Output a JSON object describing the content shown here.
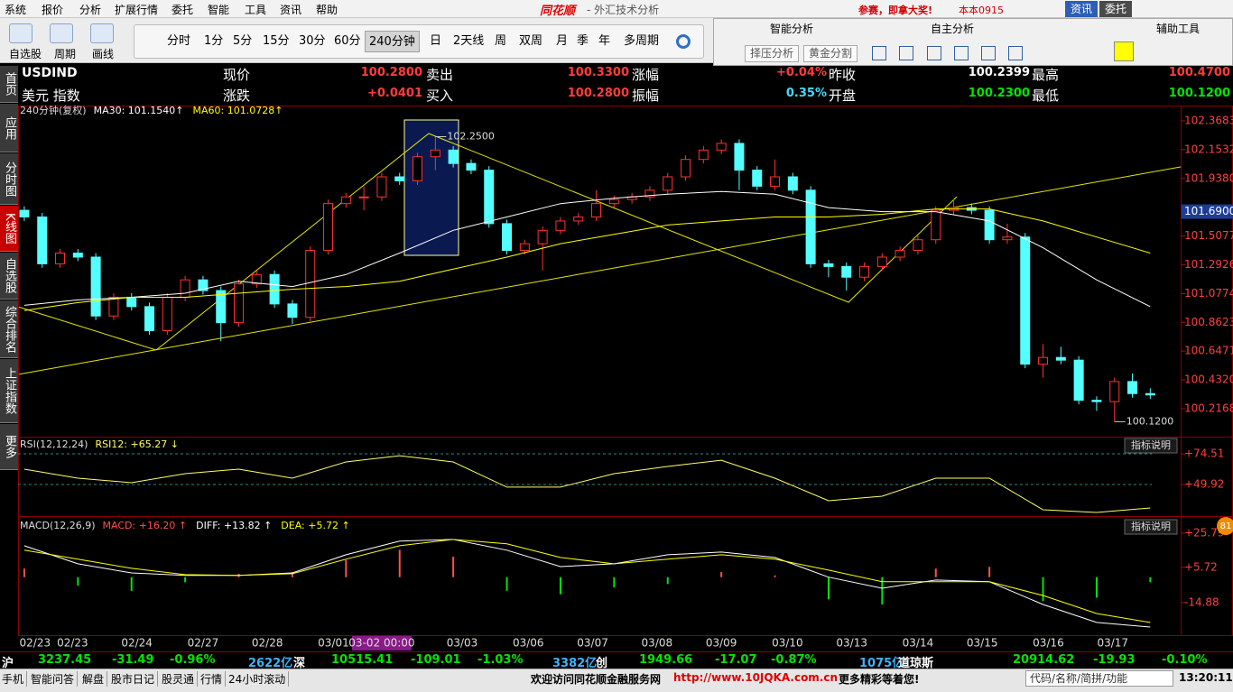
{
  "titlebar": {
    "menu": [
      "系统",
      "报价",
      "分析",
      "扩展行情",
      "委托",
      "智能",
      "工具",
      "资讯",
      "帮助"
    ],
    "logo": "同花顺",
    "title": "- 外汇技术分析",
    "promo": "参赛，即拿大奖!",
    "user": "本本0915",
    "buttons": [
      "资讯",
      "委托"
    ]
  },
  "toolbar": {
    "tools": [
      "自选股",
      "周期",
      "画线"
    ],
    "periods": [
      "分时",
      "1分",
      "5分",
      "15分",
      "30分",
      "60分",
      "240分钟",
      "日",
      "2天线",
      "周",
      "双周",
      "月",
      "季",
      "年",
      "多周期"
    ],
    "selected_period": 6
  },
  "analysis_panel": {
    "tabs": [
      "智能分析",
      "自主分析",
      "辅助工具"
    ],
    "buttons": [
      "择压分析",
      "黄金分割"
    ]
  },
  "quote": {
    "symbol": "USDIND",
    "name": "美元 指数",
    "fields": [
      {
        "label": "现价",
        "value": "100.2800",
        "color": "#ff3c3c"
      },
      {
        "label": "卖出",
        "value": "100.3300",
        "color": "#ff3c3c"
      },
      {
        "label": "涨幅",
        "value": "+0.04%",
        "color": "#ff3c3c"
      },
      {
        "label": "昨收",
        "value": "100.2399",
        "color": "#ffffff"
      },
      {
        "label": "最高",
        "value": "100.4700",
        "color": "#ff3c3c"
      },
      {
        "label": "涨跌",
        "value": "+0.0401",
        "color": "#ff3c3c"
      },
      {
        "label": "买入",
        "value": "100.2800",
        "color": "#ff3c3c"
      },
      {
        "label": "振幅",
        "value": "0.35%",
        "color": "#3cdcff"
      },
      {
        "label": "开盘",
        "value": "100.2300",
        "color": "#00e600"
      },
      {
        "label": "最低",
        "value": "100.1200",
        "color": "#00e600"
      }
    ]
  },
  "side_tabs": [
    "首页",
    "应用",
    "分时图",
    "K线图",
    "自选股",
    "综合排名",
    "上证指数",
    "更多"
  ],
  "selected_tab": 3,
  "badge": "81",
  "chart_data": [
    {
      "type": "candlestick",
      "title": "240分钟(复权)",
      "up_color": "#ff3232",
      "down_color": "#54ffff",
      "xlim": [
        -0.35,
        64.7
      ],
      "ylim": [
        100.008,
        102.395
      ],
      "yticks": [
        102.3683,
        102.1532,
        {
          "value": 101.938,
          "label": "101.9380"
        },
        101.5077,
        101.2926,
        101.0774,
        100.8623,
        100.6471,
        {
          "value": 100.432,
          "label": "100.4320"
        },
        100.2168
      ],
      "price_marker": {
        "value": 101.69,
        "label": "101.6900"
      },
      "extremes": [
        {
          "value": 102.25,
          "label": "102.2500"
        },
        {
          "value": 100.12,
          "label": "100.1200"
        }
      ],
      "ohlc": [
        [
          101.7,
          101.73,
          101.62,
          101.65
        ],
        [
          101.65,
          101.68,
          101.27,
          101.3
        ],
        [
          101.3,
          101.41,
          101.27,
          101.38
        ],
        [
          101.38,
          101.41,
          101.32,
          101.35
        ],
        [
          101.35,
          101.38,
          100.88,
          100.91
        ],
        [
          100.91,
          101.08,
          100.88,
          101.05
        ],
        [
          101.05,
          101.08,
          100.95,
          100.98
        ],
        [
          100.98,
          101.01,
          100.77,
          100.8
        ],
        [
          100.8,
          101.08,
          100.77,
          101.05
        ],
        [
          101.05,
          101.21,
          101.02,
          101.18
        ],
        [
          101.18,
          101.21,
          101.07,
          101.1
        ],
        [
          101.1,
          101.13,
          100.72,
          100.86
        ],
        [
          100.86,
          101.18,
          100.83,
          101.15
        ],
        [
          101.15,
          101.25,
          101.12,
          101.22
        ],
        [
          101.22,
          101.25,
          100.97,
          101.0
        ],
        [
          101.0,
          101.03,
          100.85,
          100.9
        ],
        [
          100.9,
          101.43,
          100.87,
          101.4
        ],
        [
          101.4,
          101.78,
          101.37,
          101.75
        ],
        [
          101.75,
          101.83,
          101.72,
          101.8
        ],
        [
          101.8,
          101.88,
          101.7,
          101.8
        ],
        [
          101.8,
          101.98,
          101.77,
          101.95
        ],
        [
          101.95,
          101.98,
          101.89,
          101.92
        ],
        [
          101.92,
          102.13,
          101.89,
          102.1
        ],
        [
          102.1,
          102.25,
          102.0,
          102.15
        ],
        [
          102.15,
          102.18,
          102.02,
          102.05
        ],
        [
          102.05,
          102.08,
          101.97,
          102.0
        ],
        [
          102.0,
          102.03,
          101.57,
          101.6
        ],
        [
          101.6,
          101.63,
          101.37,
          101.4
        ],
        [
          101.4,
          101.48,
          101.37,
          101.45
        ],
        [
          101.45,
          101.58,
          101.25,
          101.55
        ],
        [
          101.55,
          101.65,
          101.52,
          101.62
        ],
        [
          101.62,
          101.68,
          101.59,
          101.65
        ],
        [
          101.65,
          101.85,
          101.62,
          101.75
        ],
        [
          101.75,
          101.81,
          101.72,
          101.78
        ],
        [
          101.78,
          101.83,
          101.75,
          101.8
        ],
        [
          101.8,
          101.88,
          101.77,
          101.85
        ],
        [
          101.85,
          101.98,
          101.82,
          101.95
        ],
        [
          101.95,
          102.11,
          101.92,
          102.08
        ],
        [
          102.08,
          102.18,
          102.05,
          102.15
        ],
        [
          102.15,
          102.23,
          102.12,
          102.2
        ],
        [
          102.2,
          102.23,
          101.85,
          102.0
        ],
        [
          102.0,
          102.03,
          101.85,
          101.88
        ],
        [
          101.88,
          102.08,
          101.85,
          101.95
        ],
        [
          101.95,
          101.98,
          101.82,
          101.85
        ],
        [
          101.85,
          101.88,
          101.27,
          101.3
        ],
        [
          101.3,
          101.33,
          101.2,
          101.28
        ],
        [
          101.28,
          101.31,
          101.1,
          101.2
        ],
        [
          101.2,
          101.31,
          101.17,
          101.28
        ],
        [
          101.28,
          101.38,
          101.25,
          101.35
        ],
        [
          101.35,
          101.43,
          101.32,
          101.4
        ],
        [
          101.4,
          101.51,
          101.37,
          101.48
        ],
        [
          101.48,
          101.73,
          101.45,
          101.7
        ],
        [
          101.7,
          101.78,
          101.67,
          101.72
        ],
        [
          101.72,
          101.75,
          101.67,
          101.7
        ],
        [
          101.7,
          101.73,
          101.45,
          101.48
        ],
        [
          101.48,
          101.6,
          101.45,
          101.5
        ],
        [
          101.5,
          101.53,
          100.52,
          100.55
        ],
        [
          100.55,
          100.7,
          100.45,
          100.6
        ],
        [
          100.6,
          100.68,
          100.55,
          100.58
        ],
        [
          100.58,
          100.61,
          100.25,
          100.28
        ],
        [
          100.28,
          100.31,
          100.2,
          100.27
        ],
        [
          100.27,
          100.45,
          100.12,
          100.42
        ],
        [
          100.42,
          100.48,
          100.3,
          100.33
        ],
        [
          100.33,
          100.37,
          100.29,
          100.32
        ]
      ],
      "x": [
        0,
        3,
        6,
        9,
        12,
        15,
        18,
        21,
        24,
        27,
        30,
        33,
        36,
        39,
        42,
        45,
        48,
        51,
        54,
        57,
        60,
        63
      ],
      "series": [
        {
          "name": "MA30: 101.1540↑",
          "color": "#ffffff",
          "values": [
            100.99,
            101.03,
            101.05,
            101.08,
            101.17,
            101.13,
            101.22,
            101.38,
            101.55,
            101.65,
            101.75,
            101.79,
            101.82,
            101.84,
            101.82,
            101.72,
            101.69,
            101.69,
            101.62,
            101.42,
            101.18,
            100.98
          ]
        },
        {
          "name": "MA60: 101.0728↑",
          "color": "#ffff00",
          "values": [
            100.95,
            101.01,
            101.05,
            101.05,
            101.08,
            101.11,
            101.13,
            101.17,
            101.26,
            101.35,
            101.45,
            101.52,
            101.59,
            101.62,
            101.65,
            101.65,
            101.67,
            101.71,
            101.71,
            101.62,
            101.5,
            101.38
          ]
        }
      ]
    },
    {
      "type": "line",
      "title": "RSI(12,12,24)",
      "help_button": "指标说明",
      "grid": true,
      "xlim": [
        -0.35,
        64.7
      ],
      "ylim": [
        26.07,
        85.36
      ],
      "yticks": [
        {
          "value": 74.51,
          "label": "+74.51"
        },
        {
          "value": 49.92,
          "label": "+49.92"
        }
      ],
      "x": [
        0,
        3,
        6,
        9,
        12,
        15,
        18,
        21,
        24,
        27,
        30,
        33,
        36,
        39,
        42,
        45,
        48,
        51,
        54,
        57,
        60,
        63
      ],
      "series": [
        {
          "name": "RSI12: +65.27 ↓",
          "color": "#ffff66",
          "values": [
            62.2,
            55,
            51.4,
            58.6,
            62.2,
            55,
            68,
            73,
            68,
            47.8,
            47.8,
            58.6,
            64.4,
            69.4,
            55,
            36.9,
            40.5,
            55,
            55,
            29.7,
            27.5,
            31.1
          ]
        }
      ]
    },
    {
      "type": "combo",
      "title": "MACD(12,26,9)",
      "help_button": "指标说明",
      "xlim": [
        -0.35,
        64.7
      ],
      "ylim": [
        -34.5,
        32.6
      ],
      "yticks": [
        {
          "value": 25.79,
          "label": "+25.79"
        },
        {
          "value": 5.72,
          "label": "+5.72"
        },
        -14.88
      ],
      "xticks": [
        {
          "value": 0.6,
          "label": "02/23"
        },
        {
          "value": 2.7,
          "label": "02/23"
        },
        {
          "value": 6.3,
          "label": "02/24"
        },
        {
          "value": 10,
          "label": "02/27"
        },
        {
          "value": 13.6,
          "label": "02/28"
        },
        {
          "value": 17.3,
          "label": "03/01"
        },
        {
          "value": 24.5,
          "label": "03/03"
        },
        {
          "value": 28.2,
          "label": "03/06"
        },
        {
          "value": 31.8,
          "label": "03/07"
        },
        {
          "value": 35.4,
          "label": "03/08"
        },
        {
          "value": 39,
          "label": "03/09"
        },
        {
          "value": 42.7,
          "label": "03/10"
        },
        {
          "value": 46.3,
          "label": "03/13"
        },
        {
          "value": 50,
          "label": "03/14"
        },
        {
          "value": 53.6,
          "label": "03/15"
        },
        {
          "value": 57.3,
          "label": "03/16"
        },
        {
          "value": 60.9,
          "label": "03/17"
        }
      ],
      "cursor": {
        "value": 20,
        "label": "03-02 00:00"
      },
      "x": [
        0,
        3,
        6,
        9,
        12,
        15,
        18,
        21,
        24,
        27,
        30,
        33,
        36,
        39,
        42,
        45,
        48,
        51,
        54,
        57,
        60,
        63
      ],
      "series": [
        {
          "name": "MACD: +16.20 ↑",
          "kind": "bar",
          "color": "#ff5050",
          "down_color": "#00e600",
          "values": [
            5,
            -5,
            -8,
            -3,
            2,
            3,
            10,
            16,
            12,
            -8,
            -10,
            -6,
            -4,
            3,
            1,
            -13,
            -16,
            5,
            6,
            -14,
            -12,
            -3
          ]
        },
        {
          "name": "DIFF: +13.82 ↑",
          "kind": "line",
          "color": "#ffffff",
          "values": [
            18.4,
            7.8,
            2.5,
            1,
            1,
            2.5,
            13.1,
            21.1,
            22.1,
            15.8,
            6.2,
            7.8,
            13.1,
            14.7,
            11.5,
            0,
            -6.5,
            -1.7,
            -2.7,
            -16,
            -26.5,
            -29.2
          ]
        },
        {
          "name": "DEA: +5.72 ↑",
          "kind": "line",
          "color": "#ffff00",
          "values": [
            15.8,
            10.5,
            5.2,
            1.5,
            1,
            2,
            10.5,
            18.4,
            22.1,
            19.5,
            11.5,
            7.8,
            10.5,
            13.1,
            10.5,
            4.1,
            -2.7,
            -2.7,
            -2.7,
            -10.7,
            -21.3,
            -26.5
          ]
        }
      ]
    }
  ],
  "ticker": [
    {
      "text": "沪",
      "color": "#ffffff"
    },
    {
      "text": "3237.45",
      "color": "#00e600"
    },
    {
      "text": "-31.49",
      "color": "#00e600"
    },
    {
      "text": "-0.96%",
      "color": "#00e600"
    },
    {
      "text": "2622亿",
      "color": "#3cb4ff"
    },
    {
      "text": "深",
      "color": "#ffffff"
    },
    {
      "text": "10515.41",
      "color": "#00e600"
    },
    {
      "text": "-109.01",
      "color": "#00e600"
    },
    {
      "text": "-1.03%",
      "color": "#00e600"
    },
    {
      "text": "3382亿",
      "color": "#3cb4ff"
    },
    {
      "text": "创",
      "color": "#ffffff"
    },
    {
      "text": "1949.66",
      "color": "#00e600"
    },
    {
      "text": "-17.07",
      "color": "#00e600"
    },
    {
      "text": "-0.87%",
      "color": "#00e600"
    },
    {
      "text": "1075亿",
      "color": "#3cb4ff"
    },
    {
      "text": "道琼斯",
      "color": "#ffffff"
    },
    {
      "text": "20914.62",
      "color": "#00e600"
    },
    {
      "text": "-19.93",
      "color": "#00e600"
    },
    {
      "text": "-0.10%",
      "color": "#00e600"
    }
  ],
  "footer": {
    "links": [
      "手机",
      "智能问答",
      "解盘",
      "股市日记",
      "股灵通",
      "行情",
      "24小时滚动"
    ],
    "message": "欢迎访问同花顺金融服务网",
    "url": "http://www.10JQKA.com.cn",
    "tail": "更多精彩等着您!",
    "search": "代码/名称/简拼/功能",
    "time": "13:20:11"
  }
}
